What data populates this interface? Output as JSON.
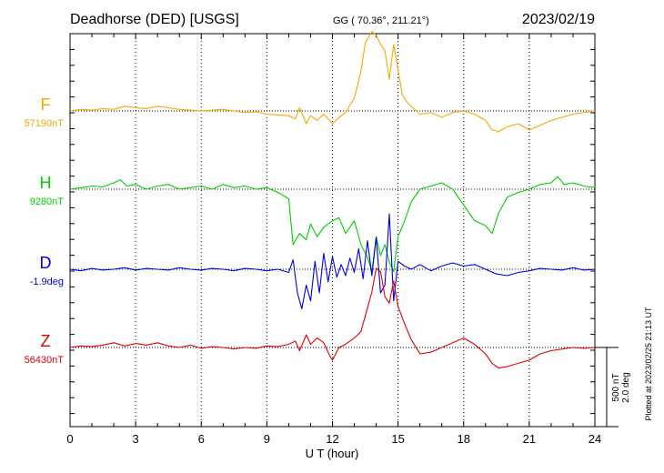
{
  "header": {
    "station": "Deadhorse (DED)  [USGS]",
    "coords": "GG ( 70.36°, 211.21°)",
    "date": "2023/02/19"
  },
  "footer": {
    "plotted": "Plotted at 2023/02/25 21:13 UT"
  },
  "chart_data": {
    "type": "line",
    "xlabel": "U T (hour)",
    "xlim": [
      0,
      24
    ],
    "xticks": [
      "0",
      "3",
      "6",
      "9",
      "12",
      "15",
      "18",
      "21",
      "24"
    ],
    "grid": true,
    "scale_bar": {
      "line1": "500 nT",
      "line2": "2.0 deg"
    },
    "colors": {
      "F": "#f5a800",
      "H": "#00d000",
      "D": "#0000dd",
      "Z": "#e00000"
    },
    "series": [
      {
        "name": "F",
        "baseline": "57190nT",
        "x": [
          0,
          0.5,
          1,
          1.5,
          2,
          2.5,
          3,
          3.5,
          4,
          4.5,
          5,
          5.5,
          6,
          6.5,
          7,
          7.5,
          8,
          8.5,
          9,
          9.5,
          10,
          10.3,
          10.5,
          10.8,
          11,
          11.3,
          11.6,
          12,
          12.3,
          12.6,
          13,
          13.3,
          13.5,
          13.8,
          14,
          14.2,
          14.4,
          14.6,
          14.8,
          15,
          15.2,
          15.5,
          16,
          16.5,
          17,
          17.5,
          18,
          18.5,
          19,
          19.3,
          19.6,
          20,
          20.5,
          21,
          21.5,
          22,
          22.5,
          23,
          23.5,
          24
        ],
        "values": [
          0,
          10,
          5,
          15,
          10,
          30,
          20,
          15,
          30,
          20,
          10,
          5,
          0,
          5,
          10,
          0,
          -10,
          -5,
          -20,
          -25,
          -30,
          -50,
          20,
          -80,
          -30,
          -60,
          -20,
          -80,
          -40,
          -10,
          80,
          250,
          430,
          500,
          480,
          420,
          380,
          200,
          420,
          260,
          100,
          40,
          -20,
          -10,
          -40,
          -10,
          0,
          -20,
          -60,
          -120,
          -130,
          -100,
          -80,
          -120,
          -90,
          -60,
          -40,
          -20,
          -10,
          0
        ]
      },
      {
        "name": "H",
        "baseline": "9280nT",
        "x": [
          0,
          0.5,
          1,
          1.5,
          2,
          2.3,
          2.6,
          3,
          3.5,
          4,
          4.5,
          5,
          5.5,
          6,
          6.5,
          7,
          7.5,
          8,
          8.5,
          9,
          9.5,
          10,
          10.2,
          10.5,
          10.8,
          11,
          11.3,
          11.6,
          12,
          12.3,
          12.6,
          13,
          13.3,
          13.6,
          13.8,
          14,
          14.2,
          14.4,
          14.6,
          14.8,
          15,
          15.3,
          15.6,
          16,
          16.5,
          17,
          17.5,
          18,
          18.5,
          19,
          19.3,
          19.6,
          20,
          20.5,
          21,
          21.5,
          22,
          22.3,
          22.6,
          23,
          23.5,
          24
        ],
        "values": [
          0,
          10,
          20,
          15,
          40,
          60,
          20,
          30,
          0,
          20,
          30,
          0,
          10,
          20,
          0,
          30,
          10,
          20,
          0,
          10,
          -20,
          -60,
          -350,
          -280,
          -320,
          -220,
          -300,
          -240,
          -200,
          -180,
          -280,
          -200,
          -350,
          -430,
          -520,
          -300,
          -420,
          -350,
          -460,
          -520,
          -300,
          -200,
          -80,
          0,
          20,
          40,
          0,
          -100,
          -200,
          -230,
          -280,
          -150,
          -50,
          -20,
          0,
          30,
          40,
          80,
          30,
          40,
          20,
          10
        ]
      },
      {
        "name": "D",
        "baseline": "-1.9deg",
        "x": [
          0,
          0.5,
          1,
          1.5,
          2,
          2.5,
          3,
          3.5,
          4,
          4.5,
          5,
          5.5,
          6,
          6.5,
          7,
          7.5,
          8,
          8.5,
          9,
          9.5,
          10,
          10.2,
          10.4,
          10.6,
          10.8,
          11,
          11.2,
          11.4,
          11.6,
          11.8,
          12,
          12.2,
          12.4,
          12.6,
          12.8,
          13,
          13.2,
          13.4,
          13.6,
          13.8,
          14,
          14.2,
          14.4,
          14.6,
          14.8,
          15,
          15.3,
          15.6,
          16,
          16.5,
          17,
          17.5,
          18,
          18.5,
          19,
          19.5,
          20,
          20.5,
          21,
          21.5,
          22,
          22.5,
          23,
          23.5,
          24
        ],
        "values": [
          0,
          -10,
          5,
          -5,
          0,
          10,
          -5,
          5,
          0,
          -5,
          10,
          0,
          -5,
          5,
          0,
          -10,
          5,
          0,
          -10,
          0,
          -20,
          60,
          -150,
          -250,
          -100,
          -200,
          50,
          -150,
          100,
          -80,
          80,
          -50,
          30,
          -40,
          70,
          -20,
          130,
          -60,
          180,
          -40,
          200,
          -150,
          -100,
          350,
          -200,
          50,
          20,
          0,
          30,
          -10,
          20,
          40,
          20,
          30,
          0,
          -30,
          -40,
          -20,
          -10,
          5,
          0,
          -5,
          10,
          -5,
          0
        ]
      },
      {
        "name": "Z",
        "baseline": "56430nT",
        "x": [
          0,
          0.5,
          1,
          1.5,
          2,
          2.5,
          3,
          3.5,
          4,
          4.5,
          5,
          5.5,
          6,
          6.5,
          7,
          7.5,
          8,
          8.5,
          9,
          9.5,
          10,
          10.3,
          10.5,
          10.8,
          11,
          11.3,
          11.6,
          11.9,
          12,
          12.3,
          12.6,
          13,
          13.3,
          13.5,
          13.8,
          14,
          14.2,
          14.4,
          14.6,
          14.8,
          15,
          15.3,
          15.6,
          16,
          16.5,
          17,
          17.5,
          18,
          18.5,
          19,
          19.3,
          19.6,
          20,
          20.5,
          21,
          21.5,
          22,
          22.5,
          23,
          23.5,
          24
        ],
        "values": [
          0,
          10,
          5,
          15,
          30,
          10,
          25,
          15,
          30,
          10,
          0,
          15,
          -5,
          5,
          0,
          -10,
          0,
          -5,
          10,
          5,
          20,
          40,
          -20,
          80,
          20,
          60,
          30,
          -60,
          -80,
          0,
          20,
          60,
          100,
          200,
          350,
          500,
          480,
          320,
          280,
          420,
          260,
          150,
          50,
          -40,
          -30,
          0,
          30,
          60,
          20,
          -40,
          -100,
          -130,
          -120,
          -100,
          -80,
          -40,
          -20,
          -10,
          0,
          -5,
          0
        ]
      }
    ]
  }
}
